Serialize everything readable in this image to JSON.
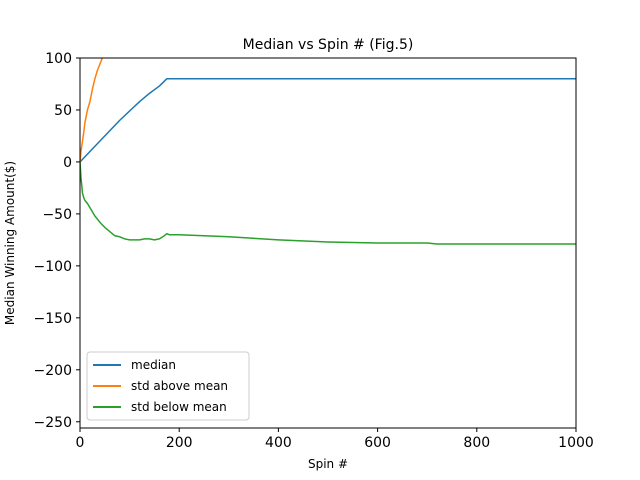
{
  "chart_data": {
    "type": "line",
    "title": "Median vs Spin # (Fig.5)",
    "xlabel": "Spin #",
    "ylabel": "Median Winning Amount($)",
    "xlim": [
      0,
      1000
    ],
    "ylim": [
      -256,
      100
    ],
    "xticks": [
      0,
      200,
      400,
      600,
      800,
      1000
    ],
    "yticks": [
      100,
      50,
      0,
      -50,
      -100,
      -150,
      -200,
      -250
    ],
    "xtick_labels": [
      "0",
      "200",
      "400",
      "600",
      "800",
      "1000"
    ],
    "ytick_labels": [
      "100",
      "50",
      "0",
      "−50",
      "−100",
      "−150",
      "−200",
      "−250"
    ],
    "grid": false,
    "legend_position": "lower-left",
    "series": [
      {
        "name": "median",
        "color": "#1f77b4",
        "x": [
          0,
          20,
          40,
          60,
          80,
          100,
          120,
          140,
          160,
          175,
          200,
          400,
          600,
          800,
          1000
        ],
        "y": [
          0,
          10,
          20,
          30,
          40,
          49,
          58,
          66,
          73,
          80,
          80,
          80,
          80,
          80,
          80
        ]
      },
      {
        "name": "std above mean",
        "color": "#ff7f0e",
        "x": [
          0,
          2,
          5,
          8,
          10,
          15,
          20,
          25,
          30,
          35,
          40,
          45
        ],
        "y": [
          0,
          10,
          20,
          30,
          38,
          50,
          58,
          70,
          80,
          88,
          94,
          100
        ]
      },
      {
        "name": "std below mean",
        "color": "#2ca02c",
        "x": [
          0,
          2,
          5,
          8,
          10,
          15,
          20,
          30,
          40,
          50,
          60,
          70,
          80,
          90,
          100,
          110,
          120,
          130,
          140,
          150,
          160,
          170,
          175,
          180,
          200,
          250,
          300,
          400,
          500,
          600,
          700,
          720,
          800,
          900,
          1000
        ],
        "y": [
          0,
          -15,
          -30,
          -35,
          -37,
          -40,
          -44,
          -52,
          -58,
          -63,
          -67,
          -71,
          -72,
          -74,
          -75,
          -75,
          -75,
          -74,
          -74,
          -75,
          -74,
          -71,
          -69,
          -70,
          -70,
          -71,
          -72,
          -75,
          -77,
          -78,
          -78,
          -79,
          -79,
          -79,
          -79
        ]
      }
    ]
  }
}
